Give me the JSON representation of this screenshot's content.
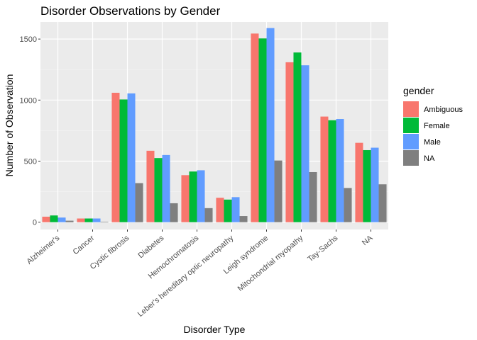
{
  "chart_data": {
    "type": "bar",
    "title": "Disorder Observations by Gender",
    "xlabel": "Disorder Type",
    "ylabel": "Number of Observation",
    "ylim": [
      -60,
      1640
    ],
    "yticks": [
      0,
      500,
      1000,
      1500
    ],
    "grid": true,
    "legend_position": "right",
    "legend_title": "gender",
    "categories": [
      "Alzheimer's",
      "Cancer",
      "Cystic fibrosis",
      "Diabetes",
      "Hemochromatosis",
      "Leber's hereditary optic neuropathy",
      "Leigh syndrome",
      "Mitochondrial myopathy",
      "Tay-Sachs",
      "NA"
    ],
    "series": [
      {
        "name": "Ambiguous",
        "color": "#F8766D",
        "values": [
          45,
          30,
          1060,
          585,
          385,
          200,
          1545,
          1310,
          865,
          650
        ]
      },
      {
        "name": "Female",
        "color": "#00BA38",
        "values": [
          55,
          30,
          1005,
          525,
          415,
          185,
          1505,
          1390,
          835,
          590
        ]
      },
      {
        "name": "Male",
        "color": "#619CFF",
        "values": [
          38,
          30,
          1055,
          550,
          425,
          205,
          1590,
          1285,
          845,
          610
        ]
      },
      {
        "name": "NA",
        "color": "#7F7F7F",
        "values": [
          12,
          4,
          320,
          155,
          115,
          50,
          505,
          410,
          280,
          310
        ]
      }
    ]
  }
}
